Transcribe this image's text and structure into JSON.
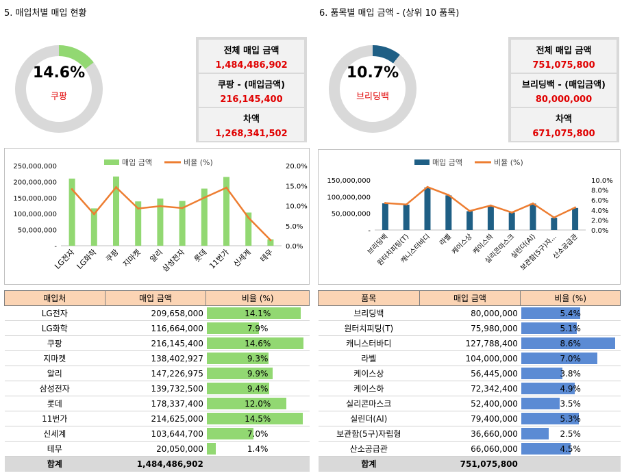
{
  "left": {
    "title": "5. 매입처별 매입 현황",
    "donut": {
      "pct": "14.6%",
      "fraction": 0.146,
      "label": "쿠팡",
      "color": "#92d872"
    },
    "summary": [
      {
        "label": "전체 매입 금액",
        "value": "1,484,486,902"
      },
      {
        "label": "쿠팡 - (매입금액)",
        "value": "216,145,400"
      },
      {
        "label": "차액",
        "value": "1,268,341,502"
      }
    ],
    "table": {
      "headers": [
        "매입처",
        "매입 금액",
        "비율 (%)"
      ],
      "rows": [
        {
          "name": "LG전자",
          "amount": "209,658,000",
          "pct": "14.1%",
          "ratio": 0.141
        },
        {
          "name": "LG화학",
          "amount": "116,664,000",
          "pct": "7.9%",
          "ratio": 0.079
        },
        {
          "name": "쿠팡",
          "amount": "216,145,400",
          "pct": "14.6%",
          "ratio": 0.146
        },
        {
          "name": "지마켓",
          "amount": "138,402,927",
          "pct": "9.3%",
          "ratio": 0.093
        },
        {
          "name": "알리",
          "amount": "147,226,975",
          "pct": "9.9%",
          "ratio": 0.099
        },
        {
          "name": "삼성전자",
          "amount": "139,732,500",
          "pct": "9.4%",
          "ratio": 0.094
        },
        {
          "name": "롯데",
          "amount": "178,337,400",
          "pct": "12.0%",
          "ratio": 0.12
        },
        {
          "name": "11번가",
          "amount": "214,625,000",
          "pct": "14.5%",
          "ratio": 0.145
        },
        {
          "name": "신세계",
          "amount": "103,644,700",
          "pct": "7.0%",
          "ratio": 0.07
        },
        {
          "name": "테무",
          "amount": "20,050,000",
          "pct": "1.4%",
          "ratio": 0.014
        }
      ],
      "total_label": "합계",
      "total_amount": "1,484,486,902",
      "bar_color": "#92d872"
    }
  },
  "right": {
    "title": "6. 품목별 매입 금액 - (상위 10 품목)",
    "donut": {
      "pct": "10.7%",
      "fraction": 0.107,
      "label": "브리딩백",
      "color": "#1f5f85"
    },
    "summary": [
      {
        "label": "전체 매입 금액",
        "value": "751,075,800"
      },
      {
        "label": "브리딩백 - (매입금액)",
        "value": "80,000,000"
      },
      {
        "label": "차액",
        "value": "671,075,800"
      }
    ],
    "table": {
      "headers": [
        "품목",
        "매입 금액",
        "비율 (%)"
      ],
      "rows": [
        {
          "name": "브리딩백",
          "amount": "80,000,000",
          "pct": "5.4%",
          "ratio": 0.054
        },
        {
          "name": "원터치피팅(T)",
          "amount": "75,980,000",
          "pct": "5.1%",
          "ratio": 0.051
        },
        {
          "name": "캐니스터바디",
          "amount": "127,788,400",
          "pct": "8.6%",
          "ratio": 0.086
        },
        {
          "name": "라벨",
          "amount": "104,000,000",
          "pct": "7.0%",
          "ratio": 0.07
        },
        {
          "name": "케이스상",
          "amount": "56,445,000",
          "pct": "3.8%",
          "ratio": 0.038
        },
        {
          "name": "케이스하",
          "amount": "72,342,400",
          "pct": "4.9%",
          "ratio": 0.049
        },
        {
          "name": "실리콘마스크",
          "amount": "52,400,000",
          "pct": "3.5%",
          "ratio": 0.035
        },
        {
          "name": "실린더(Al)",
          "amount": "79,400,000",
          "pct": "5.3%",
          "ratio": 0.053
        },
        {
          "name": "보관함(5구)자립형",
          "amount": "36,660,000",
          "pct": "2.5%",
          "ratio": 0.025
        },
        {
          "name": "산소공급관",
          "amount": "66,060,000",
          "pct": "4.5%",
          "ratio": 0.045
        }
      ],
      "total_label": "합계",
      "total_amount": "751,075,800",
      "bar_color": "#5b8bd4"
    }
  },
  "chart_data": [
    {
      "type": "bar",
      "legend": [
        "매입 금액",
        "비율 (%)"
      ],
      "categories": [
        "LG전자",
        "LG화학",
        "쿠팡",
        "지마켓",
        "알리",
        "삼성전자",
        "롯데",
        "11번가",
        "신세계",
        "테무"
      ],
      "series": [
        {
          "name": "매입 금액",
          "type": "bar",
          "color": "#92d872",
          "values": [
            209658000,
            116664000,
            216145400,
            138402927,
            147226975,
            139732500,
            178337400,
            214625000,
            103644700,
            20050000
          ]
        },
        {
          "name": "비율 (%)",
          "type": "line",
          "color": "#ed7d31",
          "axis": "right",
          "values": [
            14.1,
            7.9,
            14.6,
            9.3,
            9.9,
            9.4,
            12.0,
            14.5,
            7.0,
            1.4
          ]
        }
      ],
      "ylim": [
        0,
        250000000
      ],
      "yticks": [
        "-",
        "50,000,000",
        "100,000,000",
        "150,000,000",
        "200,000,000",
        "250,000,000"
      ],
      "y2lim": [
        0,
        20
      ],
      "y2ticks": [
        "0.0%",
        "5.0%",
        "10.0%",
        "15.0%",
        "20.0%"
      ],
      "legend_position": "top"
    },
    {
      "type": "bar",
      "legend": [
        "매입 금액",
        "비율 (%)"
      ],
      "categories": [
        "브리딩백",
        "원터치피팅(T)",
        "캐니스터바디",
        "라벨",
        "케이스상",
        "케이스하",
        "실리콘마스크",
        "실린더(Al)",
        "보관함(5구)자...",
        "산소공급관"
      ],
      "series": [
        {
          "name": "매입 금액",
          "type": "bar",
          "color": "#1f5f85",
          "values": [
            80000000,
            75980000,
            127788400,
            104000000,
            56445000,
            72342400,
            52400000,
            79400000,
            36660000,
            66060000
          ]
        },
        {
          "name": "비율 (%)",
          "type": "line",
          "color": "#ed7d31",
          "axis": "right",
          "values": [
            5.4,
            5.1,
            8.6,
            7.0,
            3.8,
            4.9,
            3.5,
            5.3,
            2.5,
            4.5
          ]
        }
      ],
      "ylim": [
        0,
        150000000
      ],
      "yticks": [
        "-",
        "50,000,000",
        "100,000,000",
        "150,000,000"
      ],
      "y2lim": [
        0,
        10
      ],
      "y2ticks": [
        "0.0%",
        "2.0%",
        "4.0%",
        "6.0%",
        "8.0%",
        "10.0%"
      ],
      "legend_position": "top"
    }
  ]
}
